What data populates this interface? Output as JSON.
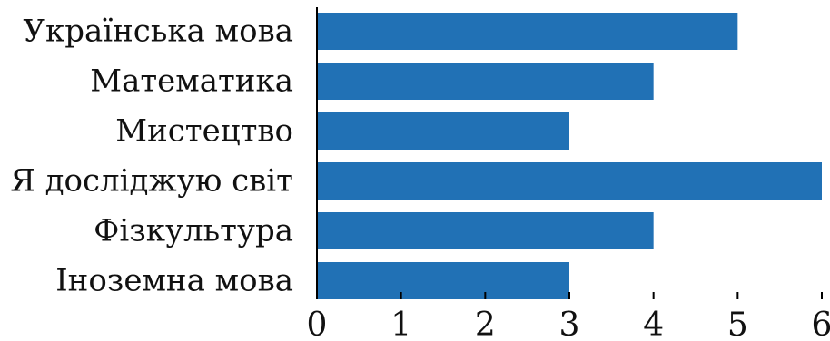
{
  "chart_data": {
    "type": "bar",
    "orientation": "horizontal",
    "categories": [
      "Українська мова",
      "Математика",
      "Мистецтво",
      "Я досліджую світ",
      "Фізкультура",
      "Іноземна мова"
    ],
    "values": [
      5,
      4,
      3,
      6,
      4,
      3
    ],
    "xlim": [
      0,
      6
    ],
    "xticks": [
      "0",
      "1",
      "2",
      "3",
      "4",
      "5",
      "6"
    ],
    "bar_color": "#2171b5",
    "grid": false,
    "legend": "none",
    "title": "",
    "xlabel": "",
    "ylabel": ""
  }
}
